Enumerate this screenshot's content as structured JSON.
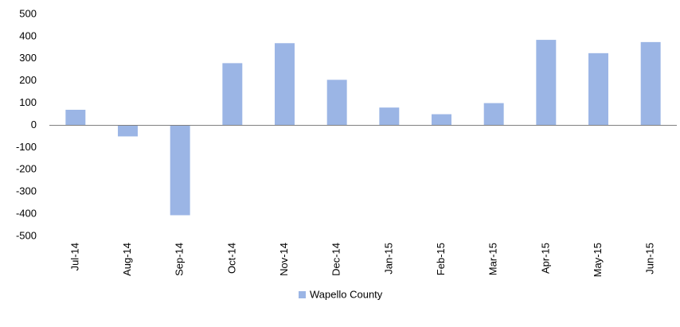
{
  "chart_data": {
    "type": "bar",
    "categories": [
      "Jul-14",
      "Aug-14",
      "Sep-14",
      "Oct-14",
      "Nov-14",
      "Dec-14",
      "Jan-15",
      "Feb-15",
      "Mar-15",
      "Apr-15",
      "May-15",
      "Jun-15"
    ],
    "series": [
      {
        "name": "Wapello County",
        "color": "#9bb5e5",
        "values": [
          70,
          -50,
          -405,
          280,
          370,
          205,
          80,
          50,
          100,
          385,
          325,
          375
        ]
      }
    ],
    "ylim": [
      -500,
      500
    ],
    "yticks": [
      -500,
      -400,
      -300,
      -200,
      -100,
      0,
      100,
      200,
      300,
      400,
      500
    ],
    "grid": false,
    "legend": "bottom"
  }
}
